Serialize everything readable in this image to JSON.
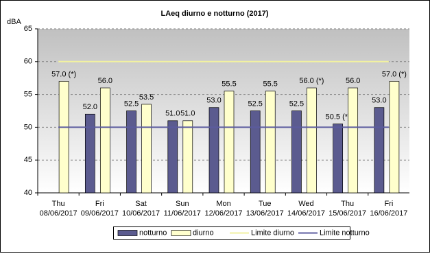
{
  "chart_data": {
    "type": "bar",
    "title": "LAeq diurno e notturno (2017)",
    "y_label": "dBA",
    "categories": [
      [
        "Thu",
        "08/06/2017"
      ],
      [
        "Fri",
        "09/06/2017"
      ],
      [
        "Sat",
        "10/06/2017"
      ],
      [
        "Sun",
        "11/06/2017"
      ],
      [
        "Mon",
        "12/06/2017"
      ],
      [
        "Tue",
        "13/06/2017"
      ],
      [
        "Wed",
        "14/06/2017"
      ],
      [
        "Thu",
        "15/06/2017"
      ],
      [
        "Fri",
        "16/06/2017"
      ]
    ],
    "series": [
      {
        "name": "notturno",
        "type": "bar",
        "color": "#5b5b8f",
        "values": [
          null,
          52,
          52.5,
          51,
          53,
          52.5,
          52.5,
          50.5,
          53
        ],
        "value_labels": [
          null,
          "52.0",
          "52.5",
          "51.0",
          "53.0",
          "52.5",
          "52.5",
          "50.5 (*)",
          "53.0"
        ]
      },
      {
        "name": "diurno",
        "type": "bar",
        "color": "#ffffcc",
        "values": [
          57,
          56,
          53.5,
          51,
          55.5,
          55.5,
          56,
          56,
          57
        ],
        "value_labels": [
          "57.0 (*)",
          "56.0",
          "53.5",
          "51.0",
          "55.5",
          "55.5",
          "56.0 (*)",
          "56.0",
          "57.0 (*)"
        ]
      },
      {
        "name": "Limite diurno",
        "type": "line",
        "color": "#f2f2a0",
        "values": [
          60,
          60,
          60,
          60,
          60,
          60,
          60,
          60,
          60
        ]
      },
      {
        "name": "Limite notturno",
        "type": "line",
        "color": "#5b5b9f",
        "values": [
          50,
          50,
          50,
          50,
          50,
          50,
          50,
          50,
          50
        ]
      }
    ],
    "ylim": [
      40,
      65
    ],
    "yticks": [
      40,
      45,
      50,
      55,
      60,
      65
    ],
    "grid": true,
    "legend": "bottom"
  }
}
